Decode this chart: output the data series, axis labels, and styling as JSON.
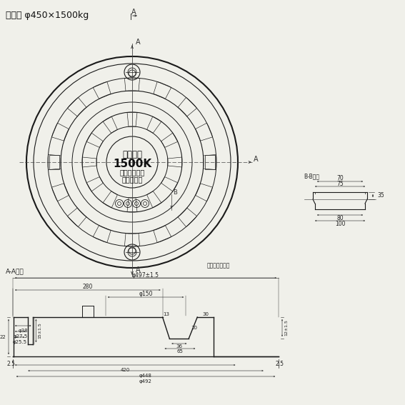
{
  "title": "アムズ φ450×1500kg",
  "bg_color": "#f0f0ea",
  "line_color": "#1a1a1a",
  "dim_color": "#222222",
  "center_text1": "安全荷重",
  "center_text2": "1500K",
  "center_text3": "必ずロックを",
  "center_text4": "して下さい",
  "label_aa": "A-A断面",
  "label_bb": "B-B断面",
  "label_mouth": "口径表示マーク",
  "dim_top": "φ497±1.5",
  "dim_38": "φ38",
  "dim_27_5": "φ27.5",
  "dim_25_5": "φ25.5",
  "dim_150": "φ150",
  "dim_280": "280",
  "dim_13": "13",
  "dim_30": "30",
  "dim_12_15": "12±1.5",
  "dim_36": "36",
  "dim_65": "65",
  "dim_10": "10",
  "dim_15_15": "15±1.5",
  "dim_420": "420",
  "dim_448": "φ448",
  "dim_492": "φ492",
  "dim_2_5_l": "2.5",
  "dim_2_5_r": "2.5",
  "dim_22": "22",
  "bb_75": "75",
  "bb_70": "70",
  "bb_80": "80",
  "bb_100": "100",
  "bb_35": "35",
  "section_a_top": "A",
  "section_a_bottom": "A",
  "section_a_right": "A",
  "section_b": "B"
}
